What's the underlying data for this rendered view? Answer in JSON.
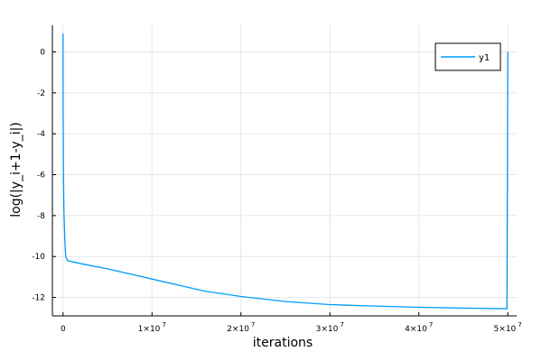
{
  "chart_data": {
    "type": "line",
    "xlabel": "iterations",
    "ylabel": "log(|y_i+1-y_i|)",
    "xlim": [
      -1200000,
      51000000
    ],
    "ylim": [
      -12.9,
      1.3
    ],
    "x_ticks": [
      {
        "value": 0,
        "base": "0",
        "exp": ""
      },
      {
        "value": 10000000,
        "base": "1×10",
        "exp": "7"
      },
      {
        "value": 20000000,
        "base": "2×10",
        "exp": "7"
      },
      {
        "value": 30000000,
        "base": "3×10",
        "exp": "7"
      },
      {
        "value": 40000000,
        "base": "4×10",
        "exp": "7"
      },
      {
        "value": 50000000,
        "base": "5×10",
        "exp": "7"
      }
    ],
    "y_ticks": [
      0,
      -2,
      -4,
      -6,
      -8,
      -10,
      -12
    ],
    "grid": true,
    "legend_position": "top-right",
    "series": [
      {
        "name": "y1",
        "color": "#009af9",
        "x": [
          0,
          10000,
          50000,
          100000,
          200000,
          300000,
          500000,
          2000000,
          5000000,
          8000000,
          10000000,
          13000000,
          16000000,
          20000000,
          25000000,
          30000000,
          35000000,
          40000000,
          45000000,
          49900000,
          50000000
        ],
        "y": [
          0.9,
          -3.0,
          -6.2,
          -7.8,
          -9.3,
          -10.0,
          -10.2,
          -10.35,
          -10.6,
          -10.9,
          -11.1,
          -11.4,
          -11.7,
          -11.95,
          -12.2,
          -12.35,
          -12.42,
          -12.48,
          -12.52,
          -12.55,
          0.0
        ]
      }
    ]
  }
}
